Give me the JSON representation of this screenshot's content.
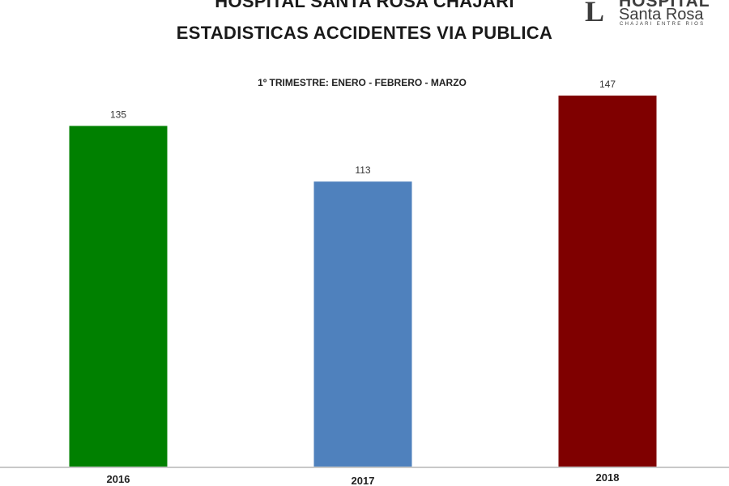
{
  "header": {
    "title_line1": "HOSPITAL SANTA ROSA CHAJARI",
    "title_line2": "ESTADISTICAS ACCIDENTES VIA PUBLICA"
  },
  "logo": {
    "mark": "L",
    "line1": "HOSPITAL",
    "line2": "Santa Rosa",
    "line3": "CHAJARI ENTRE RIOS"
  },
  "chart_data": {
    "type": "bar",
    "subtitle": "1º TRIMESTRE: ENERO - FEBRERO - MARZO",
    "categories": [
      "2016",
      "2017",
      "2018"
    ],
    "values": [
      135,
      113,
      147
    ],
    "colors": [
      "#008000",
      "#4f81bd",
      "#7f0000"
    ],
    "ylim": [
      0,
      147
    ],
    "grid": false,
    "legend": "none",
    "xlabel": "",
    "ylabel": ""
  }
}
